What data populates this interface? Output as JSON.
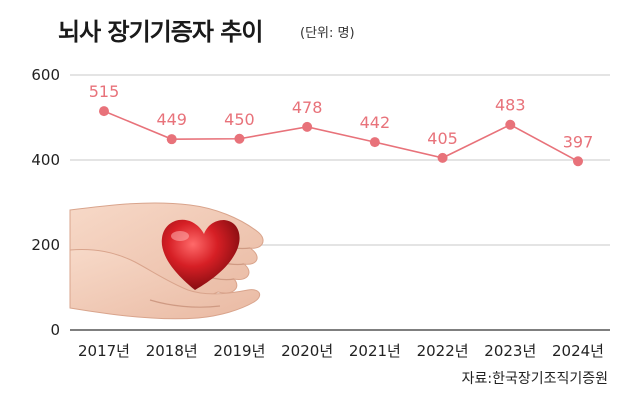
{
  "header": {
    "title": "뇌사 장기기증자 추이",
    "unit": "(단위: 명)"
  },
  "footer": {
    "source": "자료:한국장기조직기증원"
  },
  "chart_data": {
    "type": "line",
    "title": "뇌사 장기기증자 추이",
    "subtitle": "(단위: 명)",
    "categories": [
      "2017년",
      "2018년",
      "2019년",
      "2020년",
      "2021년",
      "2022년",
      "2023년",
      "2024년"
    ],
    "series": [
      {
        "values": [
          515,
          449,
          450,
          478,
          442,
          405,
          483,
          397
        ]
      }
    ],
    "yticks": [
      0,
      200,
      400,
      600
    ],
    "ylim": [
      0,
      600
    ],
    "grid": true,
    "color": "#e8727a",
    "image": "hands-holding-red-heart"
  }
}
